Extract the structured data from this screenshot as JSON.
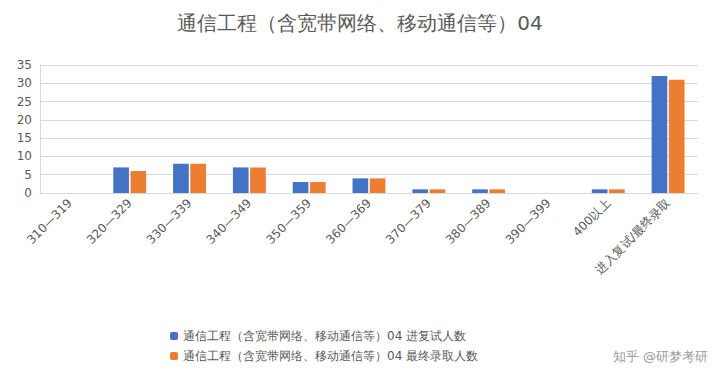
{
  "chart_data": {
    "type": "bar",
    "title": "通信工程（含宽带网络、移动通信等）04",
    "categories": [
      "310—319",
      "320—329",
      "330—339",
      "340—349",
      "350—359",
      "360—369",
      "370—379",
      "380—389",
      "390—399",
      "400以上",
      "进入复试/最终录取"
    ],
    "series": [
      {
        "name": "通信工程（含宽带网络、移动通信等）04 进复试人数",
        "color": "#4472c4",
        "values": [
          0,
          7,
          8,
          7,
          3,
          4,
          1,
          1,
          0,
          1,
          32
        ]
      },
      {
        "name": "通信工程（含宽带网络、移动通信等）04 最终录取人数",
        "color": "#ed7d31",
        "values": [
          0,
          6,
          8,
          7,
          3,
          4,
          1,
          1,
          0,
          1,
          31
        ]
      }
    ],
    "ylim": [
      0,
      35
    ],
    "yticks": [
      0,
      5,
      10,
      15,
      20,
      25,
      30,
      35
    ],
    "grid": true,
    "legend": "bottom",
    "annotations": [
      "知乎 @研梦考研"
    ]
  }
}
